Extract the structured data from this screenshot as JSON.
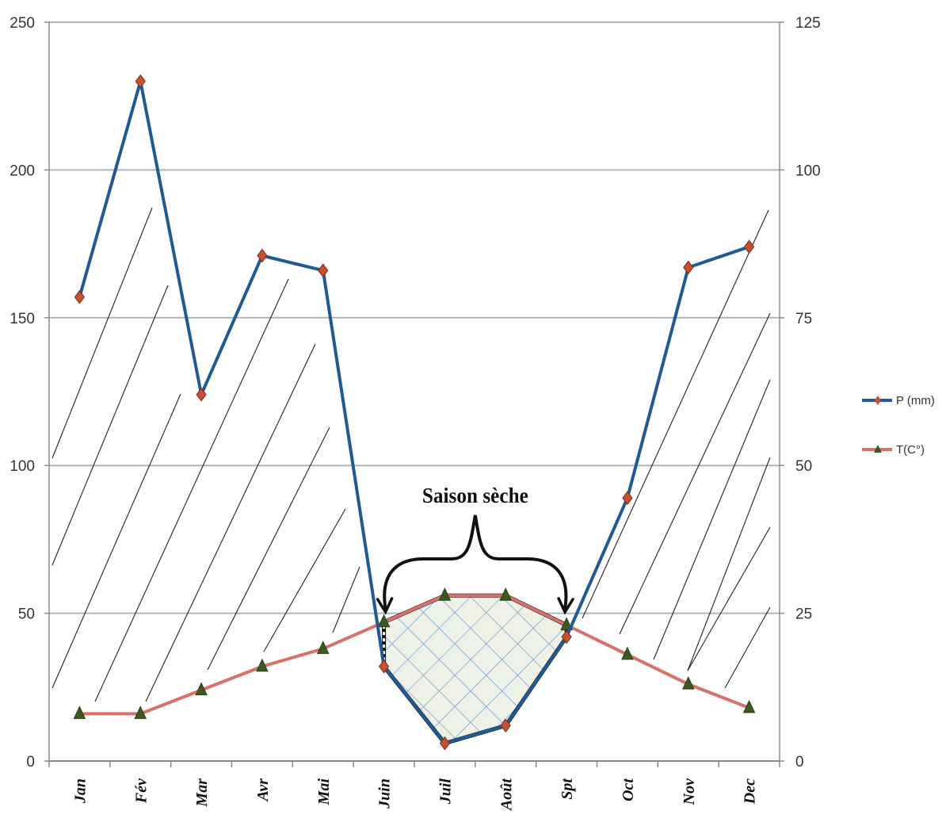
{
  "chart_data": {
    "type": "line",
    "categories": [
      "Jan",
      "Fév",
      "Mar",
      "Avr",
      "Mai",
      "Juin",
      "Juil",
      "Août",
      "Spt",
      "Oct",
      "Nov",
      "Dec"
    ],
    "series": [
      {
        "name": "P (mm)",
        "axis": "left",
        "color": "#1f5a96",
        "marker": "diamond",
        "values": [
          157,
          230,
          124,
          171,
          166,
          32,
          6,
          12,
          42,
          89,
          167,
          174
        ]
      },
      {
        "name": "T(C°)",
        "axis": "right",
        "color": "#d9716a",
        "marker": "triangle",
        "values": [
          8,
          8,
          12,
          16,
          19,
          23.5,
          28,
          28,
          23,
          18,
          13,
          9
        ]
      }
    ],
    "y_left": {
      "min": 0,
      "max": 250,
      "ticks": [
        "0",
        "50",
        "100",
        "150",
        "200",
        "250"
      ]
    },
    "y_right": {
      "min": 0,
      "max": 125,
      "ticks": [
        "0",
        "25",
        "50",
        "75",
        "100",
        "125"
      ]
    },
    "grid": true,
    "legend_position": "right",
    "annotation": "Saison sèche",
    "dry_season_months": [
      "Juin",
      "Juil",
      "Août",
      "Spt"
    ]
  }
}
